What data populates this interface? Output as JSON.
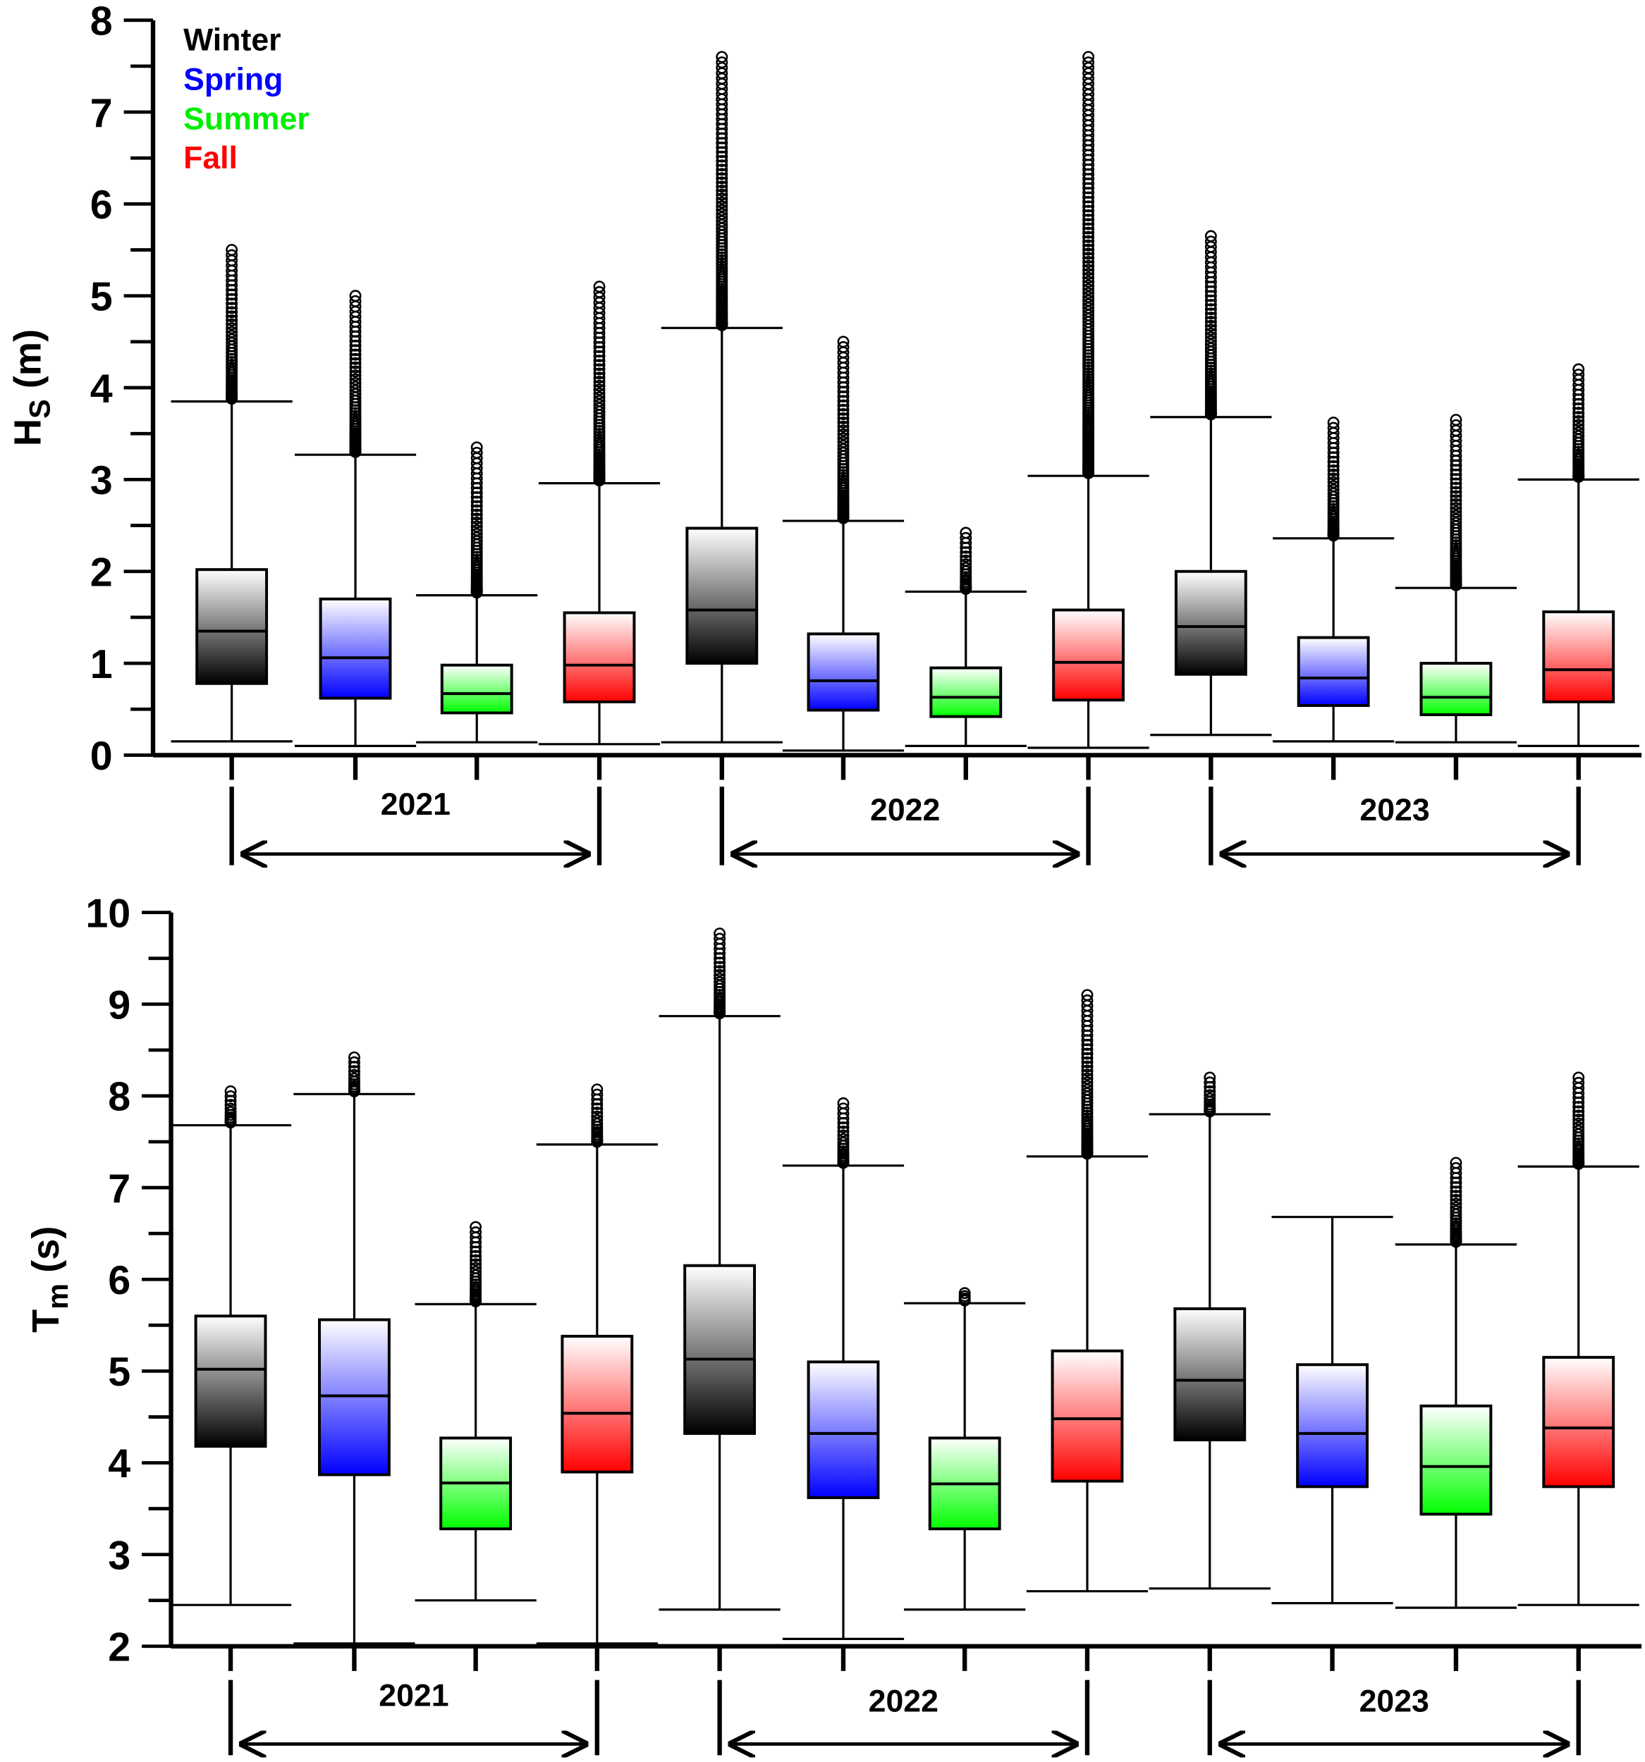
{
  "season_colors": {
    "Winter": "#000000",
    "Spring": "#0000ff",
    "Summer": "#00ff00",
    "Fall": "#ff0000"
  },
  "legend": [
    {
      "label": "Winter",
      "color": "#000000"
    },
    {
      "label": "Spring",
      "color": "#0000ff"
    },
    {
      "label": "Summer",
      "color": "#00ee00"
    },
    {
      "label": "Fall",
      "color": "#ff0000"
    }
  ],
  "years": [
    "2021",
    "2022",
    "2023"
  ],
  "chart_data": [
    {
      "type": "box",
      "ylabel_main": "H",
      "ylabel_sub": "S",
      "ylabel_unit": " (m)",
      "ylim": [
        0,
        8
      ],
      "yticks": [
        "0",
        "1",
        "2",
        "3",
        "4",
        "5",
        "6",
        "7",
        "8"
      ],
      "legend_placement": "top-left",
      "boxes": [
        {
          "year": "2021",
          "season": "Winter",
          "low": 0.15,
          "q1": 0.78,
          "median": 1.35,
          "q3": 2.02,
          "high": 3.85,
          "outlier_max": 5.5
        },
        {
          "year": "2021",
          "season": "Spring",
          "low": 0.1,
          "q1": 0.62,
          "median": 1.06,
          "q3": 1.7,
          "high": 3.27,
          "outlier_max": 5.0
        },
        {
          "year": "2021",
          "season": "Summer",
          "low": 0.14,
          "q1": 0.46,
          "median": 0.67,
          "q3": 0.98,
          "high": 1.74,
          "outlier_max": 3.35
        },
        {
          "year": "2021",
          "season": "Fall",
          "low": 0.12,
          "q1": 0.58,
          "median": 0.98,
          "q3": 1.55,
          "high": 2.96,
          "outlier_max": 5.1
        },
        {
          "year": "2022",
          "season": "Winter",
          "low": 0.14,
          "q1": 1.0,
          "median": 1.58,
          "q3": 2.47,
          "high": 4.65,
          "outlier_max": 7.6
        },
        {
          "year": "2022",
          "season": "Spring",
          "low": 0.05,
          "q1": 0.49,
          "median": 0.81,
          "q3": 1.32,
          "high": 2.55,
          "outlier_max": 4.5
        },
        {
          "year": "2022",
          "season": "Summer",
          "low": 0.1,
          "q1": 0.42,
          "median": 0.63,
          "q3": 0.95,
          "high": 1.78,
          "outlier_max": 2.42
        },
        {
          "year": "2022",
          "season": "Fall",
          "low": 0.08,
          "q1": 0.6,
          "median": 1.01,
          "q3": 1.58,
          "high": 3.04,
          "outlier_max": 7.6
        },
        {
          "year": "2023",
          "season": "Winter",
          "low": 0.22,
          "q1": 0.88,
          "median": 1.4,
          "q3": 2.0,
          "high": 3.68,
          "outlier_max": 5.65
        },
        {
          "year": "2023",
          "season": "Spring",
          "low": 0.15,
          "q1": 0.54,
          "median": 0.84,
          "q3": 1.28,
          "high": 2.36,
          "outlier_max": 3.62
        },
        {
          "year": "2023",
          "season": "Summer",
          "low": 0.14,
          "q1": 0.44,
          "median": 0.63,
          "q3": 1.0,
          "high": 1.82,
          "outlier_max": 3.65
        },
        {
          "year": "2023",
          "season": "Fall",
          "low": 0.1,
          "q1": 0.58,
          "median": 0.93,
          "q3": 1.56,
          "high": 3.0,
          "outlier_max": 4.2
        }
      ]
    },
    {
      "type": "box",
      "ylabel_main": "T",
      "ylabel_sub": "m",
      "ylabel_unit": " (s)",
      "ylim": [
        2,
        10
      ],
      "yticks": [
        "2",
        "3",
        "4",
        "5",
        "6",
        "7",
        "8",
        "9",
        "10"
      ],
      "boxes": [
        {
          "year": "2021",
          "season": "Winter",
          "low": 2.45,
          "q1": 4.18,
          "median": 5.02,
          "q3": 5.6,
          "high": 7.68,
          "outlier_max": 8.05
        },
        {
          "year": "2021",
          "season": "Spring",
          "low": 2.03,
          "q1": 3.87,
          "median": 4.73,
          "q3": 5.56,
          "high": 8.02,
          "outlier_max": 8.42
        },
        {
          "year": "2021",
          "season": "Summer",
          "low": 2.5,
          "q1": 3.28,
          "median": 3.78,
          "q3": 4.27,
          "high": 5.73,
          "outlier_max": 6.57
        },
        {
          "year": "2021",
          "season": "Fall",
          "low": 2.03,
          "q1": 3.9,
          "median": 4.54,
          "q3": 5.38,
          "high": 7.47,
          "outlier_max": 8.07
        },
        {
          "year": "2022",
          "season": "Winter",
          "low": 2.4,
          "q1": 4.32,
          "median": 5.13,
          "q3": 6.15,
          "high": 8.87,
          "outlier_max": 9.77
        },
        {
          "year": "2022",
          "season": "Spring",
          "low": 2.08,
          "q1": 3.62,
          "median": 4.32,
          "q3": 5.1,
          "high": 7.24,
          "outlier_max": 7.92
        },
        {
          "year": "2022",
          "season": "Summer",
          "low": 2.4,
          "q1": 3.28,
          "median": 3.77,
          "q3": 4.27,
          "high": 5.74,
          "outlier_max": 5.85
        },
        {
          "year": "2022",
          "season": "Fall",
          "low": 2.6,
          "q1": 3.8,
          "median": 4.48,
          "q3": 5.22,
          "high": 7.34,
          "outlier_max": 9.1
        },
        {
          "year": "2023",
          "season": "Winter",
          "low": 2.63,
          "q1": 4.25,
          "median": 4.9,
          "q3": 5.68,
          "high": 7.8,
          "outlier_max": 8.2
        },
        {
          "year": "2023",
          "season": "Spring",
          "low": 2.47,
          "q1": 3.74,
          "median": 4.32,
          "q3": 5.07,
          "high": 6.68,
          "outlier_max": null
        },
        {
          "year": "2023",
          "season": "Summer",
          "low": 2.42,
          "q1": 3.44,
          "median": 3.96,
          "q3": 4.62,
          "high": 6.38,
          "outlier_max": 7.27
        },
        {
          "year": "2023",
          "season": "Fall",
          "low": 2.45,
          "q1": 3.74,
          "median": 4.38,
          "q3": 5.15,
          "high": 7.23,
          "outlier_max": 8.2
        }
      ]
    }
  ]
}
